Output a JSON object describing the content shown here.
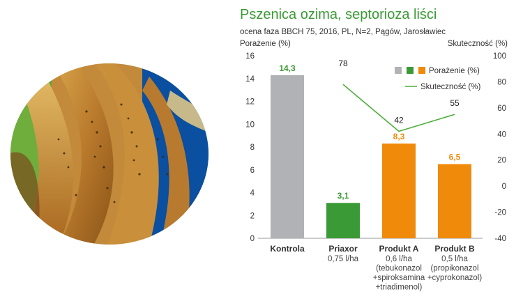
{
  "chart_data": {
    "type": "bar",
    "title": "Pszenica ozima, septorioza liści",
    "subtitle": "ocena faza BBCH 75, 2016, PL, N=2, Pągów, Jarosławiec",
    "ylabel_left": "Porażenie (%)",
    "ylabel_right": "Skuteczność (%)",
    "ylim_left": [
      0,
      16
    ],
    "ylim_right": [
      -40,
      100
    ],
    "yticks_left": [
      "0",
      "2",
      "4",
      "6",
      "8",
      "10",
      "12",
      "14",
      "16"
    ],
    "yticks_right": [
      "-40",
      "-20",
      "0",
      "20",
      "40",
      "60",
      "80",
      "100"
    ],
    "grid": false,
    "categories": [
      {
        "name": "Kontrola",
        "lines": [],
        "color": "#b0b2b5",
        "name_color": "#333333"
      },
      {
        "name": "Priaxor",
        "lines": [
          "0,75 l/ha"
        ],
        "color": "#3a9a35",
        "name_color": "#3a9a35"
      },
      {
        "name": "Produkt A",
        "lines": [
          "0,6 l/ha",
          "(tebukonazol",
          "+spiroksamina",
          "+triadimenol)"
        ],
        "color": "#f08a0a",
        "name_color": "#333333"
      },
      {
        "name": "Produkt B",
        "lines": [
          "0,5 l/ha",
          "(propikonazol",
          "+cyprokonazol)"
        ],
        "color": "#f08a0a",
        "name_color": "#333333"
      }
    ],
    "series": [
      {
        "name": "Porażenie (%)",
        "type": "bar",
        "axis": "left",
        "values": [
          14.3,
          3.1,
          8.3,
          6.5
        ],
        "labels": [
          "14,3",
          "3,1",
          "8,3",
          "6,5"
        ]
      },
      {
        "name": "Skuteczność (%)",
        "type": "line",
        "axis": "right",
        "values": [
          null,
          78,
          42,
          55
        ],
        "labels": [
          "",
          "78",
          "42",
          "55"
        ]
      }
    ],
    "legend": {
      "placement": "top-right",
      "bar_swatches": [
        "#b0b2b5",
        "#3a9a35",
        "#f08a0a"
      ],
      "line_color": "#4caf3a"
    }
  }
}
